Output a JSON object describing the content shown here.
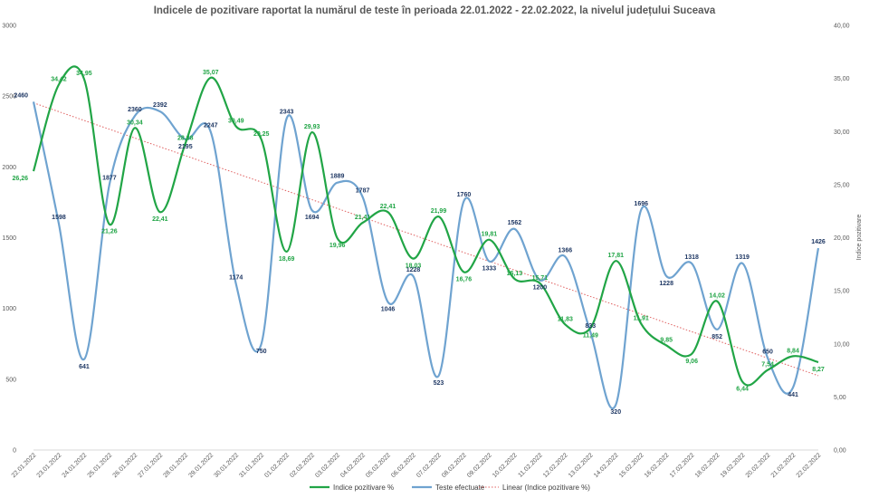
{
  "chart_data": {
    "type": "line",
    "title": "Indicele de pozitivare  raportat la numărul de teste în perioada 22.01.2022 - 22.02.2022, la nivelul județului Suceava",
    "x": [
      "22.01.2022",
      "23.01.2022",
      "24.01.2022",
      "25.01.2022",
      "26.01.2022",
      "27.01.2022",
      "28.01.2022",
      "29.01.2022",
      "30.01.2022",
      "31.01.2022",
      "01.02.2022",
      "02.02.2022",
      "03.02.2022",
      "04.02.2022",
      "05.02.2022",
      "06.02.2022",
      "07.02.2022",
      "08.02.2022",
      "09.02.2022",
      "10.02.2022",
      "11.02.2022",
      "12.02.2022",
      "13.02.2022",
      "14.02.2022",
      "15.02.2022",
      "16.02.2022",
      "17.02.2022",
      "18.02.2022",
      "19.02.2022",
      "20.02.2022",
      "21.02.2022",
      "22.02.2022"
    ],
    "left_axis": {
      "ylim": [
        0,
        3000
      ],
      "ticks": [
        "0",
        "500",
        "1000",
        "1500",
        "2000",
        "2500",
        "3000"
      ],
      "label": ""
    },
    "right_axis": {
      "ylim": [
        0,
        40
      ],
      "ticks": [
        "0,00",
        "5,00",
        "10,00",
        "15,00",
        "20,00",
        "25,00",
        "30,00",
        "35,00",
        "40,00"
      ],
      "label": "Indice pozitivare"
    },
    "grid": false,
    "legend_position": "bottom",
    "series": [
      {
        "name": "Indice pozitivare %",
        "axis": "right",
        "color": "#21a546",
        "values": [
          26.26,
          34.42,
          34.95,
          21.26,
          30.34,
          22.41,
          28.88,
          35.07,
          30.49,
          29.25,
          18.69,
          29.93,
          19.96,
          21.41,
          22.41,
          18.03,
          21.99,
          16.76,
          19.81,
          16.13,
          15.71,
          11.83,
          11.49,
          17.81,
          11.91,
          9.85,
          9.06,
          14.02,
          6.44,
          7.54,
          8.84,
          8.27
        ],
        "labels": [
          "26,26",
          "34,42",
          "34,95",
          "21,26",
          "30,34",
          "22,41",
          "28,88",
          "35,07",
          "30,49",
          "29,25",
          "18,69",
          "29,93",
          "19,96",
          "21,41",
          "22,41",
          "18,03",
          "21,99",
          "16,76",
          "19,81",
          "16,13",
          "15,71",
          "11,83",
          "11,49",
          "17,81",
          "11,91",
          "9,85",
          "9,06",
          "14,02",
          "6,44",
          "7,54",
          "8,84",
          "8,27"
        ]
      },
      {
        "name": "Teste efectuate",
        "axis": "left",
        "color": "#6fa3d0",
        "values": [
          2460,
          1598,
          641,
          1877,
          2360,
          2392,
          2195,
          2247,
          1174,
          750,
          2343,
          1694,
          1889,
          1787,
          1046,
          1228,
          523,
          1760,
          1333,
          1562,
          1200,
          1366,
          833,
          320,
          1696,
          1228,
          1318,
          852,
          1319,
          650,
          441,
          1426
        ],
        "labels": [
          "2460",
          "1598",
          "641",
          "1877",
          "2360",
          "2392",
          "2195",
          "2247",
          "1174",
          "750",
          "2343",
          "1694",
          "1889",
          "1787",
          "1046",
          "1228",
          "523",
          "1760",
          "1333",
          "1562",
          "1200",
          "1366",
          "833",
          "320",
          "1696",
          "1228",
          "1318",
          "852",
          "1319",
          "650",
          "441",
          "1426"
        ]
      },
      {
        "name": "Linear (Indice pozitivare %)",
        "axis": "right",
        "color": "#e06060",
        "trend": [
          32.7,
          7.0
        ]
      }
    ]
  }
}
